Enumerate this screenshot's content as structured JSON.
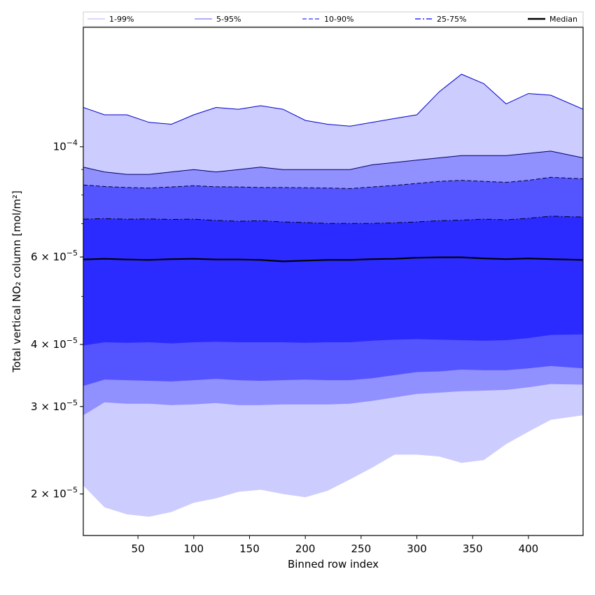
{
  "chart_data": {
    "type": "area",
    "xlabel": "Binned row index",
    "ylabel": "Total vertical NO₂ column [mol/m²]",
    "y_scale": "log",
    "xlim": [
      1,
      449
    ],
    "ylim": [
      1.65e-05,
      0.000174
    ],
    "grid": false,
    "legend_placement": "top",
    "x_ticks": [
      50,
      100,
      150,
      200,
      250,
      300,
      350,
      400
    ],
    "x_tick_labels": [
      "50",
      "100",
      "150",
      "200",
      "250",
      "300",
      "350",
      "400"
    ],
    "y_ticks": [
      {
        "value": 2e-05,
        "mantissa": "2",
        "exponent": "−5"
      },
      {
        "value": 3e-05,
        "mantissa": "3",
        "exponent": "−5"
      },
      {
        "value": 4e-05,
        "mantissa": "4",
        "exponent": "−5"
      },
      {
        "value": 6e-05,
        "mantissa": "6",
        "exponent": "−5"
      },
      {
        "value": 0.0001,
        "mantissa": "",
        "exponent": "−4"
      }
    ],
    "x": [
      1,
      20,
      40,
      60,
      80,
      100,
      120,
      140,
      160,
      180,
      200,
      220,
      240,
      260,
      280,
      300,
      320,
      340,
      360,
      380,
      400,
      420,
      449
    ],
    "bands": [
      {
        "name": "1-99%",
        "color": "#ccccff",
        "line_color": "#0000cc",
        "line_style": "solid",
        "lower": [
          2.08e-05,
          1.88e-05,
          1.82e-05,
          1.8e-05,
          1.84e-05,
          1.92e-05,
          1.96e-05,
          2.02e-05,
          2.04e-05,
          2e-05,
          1.97e-05,
          2.03e-05,
          2.14e-05,
          2.26e-05,
          2.4e-05,
          2.4e-05,
          2.38e-05,
          2.31e-05,
          2.34e-05,
          2.52e-05,
          2.67e-05,
          2.82e-05,
          2.88e-05
        ],
        "upper": [
          0.00012,
          0.000116,
          0.000116,
          0.000112,
          0.000111,
          0.000116,
          0.00012,
          0.000119,
          0.000121,
          0.000119,
          0.000113,
          0.000111,
          0.00011,
          0.000112,
          0.000114,
          0.000116,
          0.000129,
          0.00014,
          0.000134,
          0.000122,
          0.000128,
          0.000127,
          0.000119
        ]
      },
      {
        "name": "5-95%",
        "color": "#9090ff",
        "line_color": "#000066",
        "line_style": "solid",
        "lower": [
          2.88e-05,
          3.06e-05,
          3.04e-05,
          3.04e-05,
          3.02e-05,
          3.03e-05,
          3.05e-05,
          3.02e-05,
          3.02e-05,
          3.03e-05,
          3.03e-05,
          3.03e-05,
          3.04e-05,
          3.08e-05,
          3.13e-05,
          3.18e-05,
          3.2e-05,
          3.22e-05,
          3.23e-05,
          3.24e-05,
          3.28e-05,
          3.33e-05,
          3.32e-05
        ],
        "upper": [
          9.1e-05,
          8.9e-05,
          8.8e-05,
          8.8e-05,
          8.9e-05,
          9e-05,
          8.9e-05,
          9e-05,
          9.1e-05,
          9e-05,
          9e-05,
          9e-05,
          9e-05,
          9.2e-05,
          9.3e-05,
          9.4e-05,
          9.5e-05,
          9.6e-05,
          9.6e-05,
          9.6e-05,
          9.7e-05,
          9.8e-05,
          9.5e-05
        ]
      },
      {
        "name": "10-90%",
        "color": "#5555ff",
        "line_color": "#000033",
        "line_style": "dashed",
        "lower": [
          3.3e-05,
          3.4e-05,
          3.39e-05,
          3.38e-05,
          3.37e-05,
          3.39e-05,
          3.41e-05,
          3.39e-05,
          3.38e-05,
          3.39e-05,
          3.4e-05,
          3.39e-05,
          3.39e-05,
          3.42e-05,
          3.47e-05,
          3.52e-05,
          3.53e-05,
          3.56e-05,
          3.55e-05,
          3.55e-05,
          3.58e-05,
          3.62e-05,
          3.58e-05
        ],
        "upper": [
          8.38e-05,
          8.32e-05,
          8.28e-05,
          8.26e-05,
          8.3e-05,
          8.35e-05,
          8.31e-05,
          8.3e-05,
          8.28e-05,
          8.28e-05,
          8.27e-05,
          8.26e-05,
          8.24e-05,
          8.3e-05,
          8.36e-05,
          8.44e-05,
          8.52e-05,
          8.56e-05,
          8.52e-05,
          8.48e-05,
          8.56e-05,
          8.68e-05,
          8.62e-05
        ]
      },
      {
        "name": "25-75%",
        "color": "#2b2bff",
        "line_color": "#000022",
        "line_style": "dashdot",
        "lower": [
          3.98e-05,
          4.04e-05,
          4.03e-05,
          4.04e-05,
          4.02e-05,
          4.04e-05,
          4.05e-05,
          4.04e-05,
          4.04e-05,
          4.04e-05,
          4.03e-05,
          4.04e-05,
          4.04e-05,
          4.07e-05,
          4.09e-05,
          4.1e-05,
          4.09e-05,
          4.08e-05,
          4.07e-05,
          4.08e-05,
          4.12e-05,
          4.18e-05,
          4.19e-05
        ],
        "upper": [
          7.15e-05,
          7.17e-05,
          7.15e-05,
          7.16e-05,
          7.14e-05,
          7.15e-05,
          7.11e-05,
          7.08e-05,
          7.1e-05,
          7.06e-05,
          7.04e-05,
          7.01e-05,
          7.01e-05,
          7.01e-05,
          7.03e-05,
          7.06e-05,
          7.1e-05,
          7.12e-05,
          7.15e-05,
          7.13e-05,
          7.18e-05,
          7.25e-05,
          7.22e-05
        ]
      }
    ],
    "median": {
      "name": "Median",
      "color": "#000000",
      "values": [
        5.93e-05,
        5.95e-05,
        5.93e-05,
        5.92e-05,
        5.94e-05,
        5.95e-05,
        5.93e-05,
        5.93e-05,
        5.92e-05,
        5.88e-05,
        5.9e-05,
        5.92e-05,
        5.92e-05,
        5.94e-05,
        5.95e-05,
        5.98e-05,
        5.99e-05,
        5.99e-05,
        5.96e-05,
        5.94e-05,
        5.96e-05,
        5.94e-05,
        5.92e-05
      ]
    },
    "legend": [
      {
        "label": "1-99%",
        "color": "#ccccff",
        "style": "solid"
      },
      {
        "label": "5-95%",
        "color": "#9090ff",
        "style": "solid"
      },
      {
        "label": "10-90%",
        "color": "#5555ff",
        "style": "dashed"
      },
      {
        "label": "25-75%",
        "color": "#2b2bff",
        "style": "dashdot"
      },
      {
        "label": "Median",
        "color": "#000000",
        "style": "solid"
      }
    ]
  }
}
